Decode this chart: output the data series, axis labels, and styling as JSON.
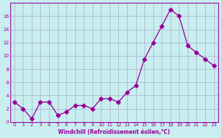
{
  "x": [
    0,
    1,
    2,
    3,
    4,
    5,
    6,
    7,
    8,
    9,
    10,
    11,
    12,
    13,
    14,
    15,
    16,
    17,
    18,
    19,
    20,
    21,
    22,
    23
  ],
  "y": [
    3,
    2,
    0.5,
    3,
    3,
    1,
    1.5,
    2.5,
    2.5,
    2,
    3.5,
    3.5,
    3,
    4.5,
    5.5,
    9.5,
    12,
    14.5,
    17,
    16,
    11.5,
    10.5,
    9.5,
    8.5
  ],
  "line_color": "#990099",
  "marker": "D",
  "marker_size": 3,
  "bg_color": "#c8eef0",
  "grid_color": "#aaaacc",
  "xlabel": "Windchill (Refroidissement éolien,°C)",
  "ylabel": "",
  "title": "",
  "ylim": [
    0,
    18
  ],
  "xlim": [
    -0.5,
    23.5
  ],
  "yticks": [
    0,
    2,
    4,
    6,
    8,
    10,
    12,
    14,
    16
  ],
  "xticks": [
    0,
    1,
    2,
    3,
    4,
    5,
    6,
    7,
    8,
    9,
    10,
    11,
    12,
    13,
    14,
    15,
    16,
    17,
    18,
    19,
    20,
    21,
    22,
    23
  ]
}
